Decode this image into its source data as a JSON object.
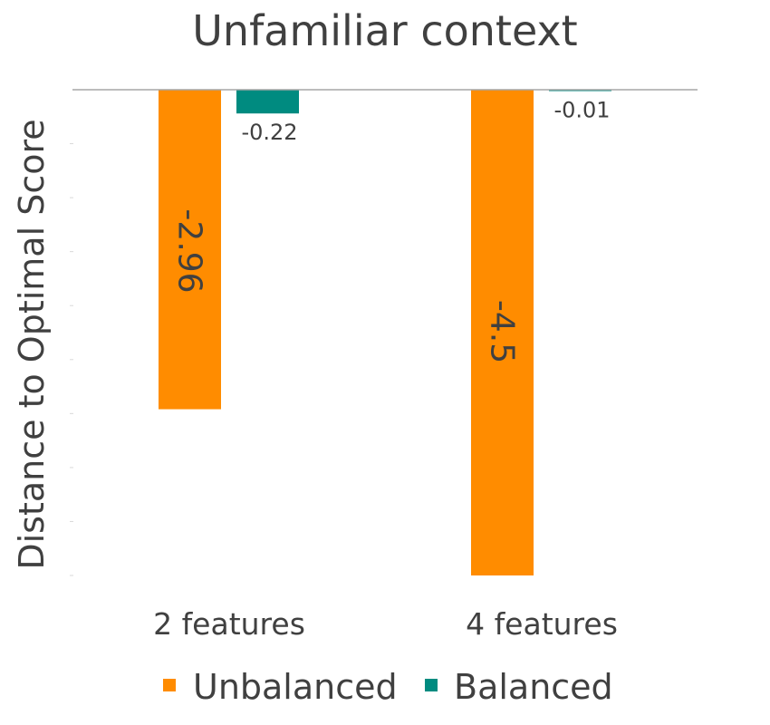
{
  "chart_data": {
    "type": "bar",
    "title": "Unfamiliar context",
    "xlabel": "",
    "ylabel": "Distance to Optimal Score",
    "categories": [
      "2 features",
      "4 features"
    ],
    "series": [
      {
        "name": "Unbalanced",
        "color": "#FF8C00",
        "values": [
          -2.96,
          -4.5
        ],
        "labels": [
          "-2.96",
          "-4.5"
        ]
      },
      {
        "name": "Balanced",
        "color": "#008B80",
        "values": [
          -0.22,
          -0.01
        ],
        "labels": [
          "-0.22",
          "-0.01"
        ]
      }
    ],
    "ylim": [
      -4.5,
      0
    ],
    "grid": false,
    "legend": "bottom",
    "axis_color": "#A6A6A6",
    "text_color": "#404040"
  }
}
